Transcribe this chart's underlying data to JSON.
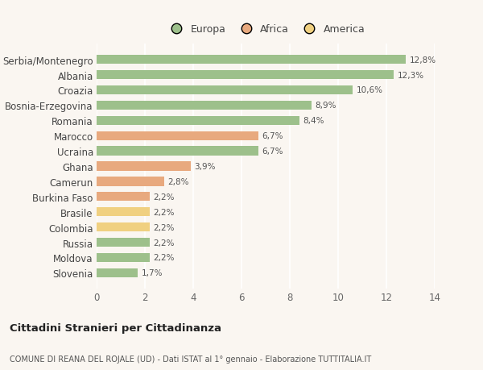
{
  "categories": [
    "Slovenia",
    "Moldova",
    "Russia",
    "Colombia",
    "Brasile",
    "Burkina Faso",
    "Camerun",
    "Ghana",
    "Ucraina",
    "Marocco",
    "Romania",
    "Bosnia-Erzegovina",
    "Croazia",
    "Albania",
    "Serbia/Montenegro"
  ],
  "values": [
    1.7,
    2.2,
    2.2,
    2.2,
    2.2,
    2.2,
    2.8,
    3.9,
    6.7,
    6.7,
    8.4,
    8.9,
    10.6,
    12.3,
    12.8
  ],
  "continents": [
    "Europa",
    "Europa",
    "Europa",
    "America",
    "America",
    "Africa",
    "Africa",
    "Africa",
    "Europa",
    "Africa",
    "Europa",
    "Europa",
    "Europa",
    "Europa",
    "Europa"
  ],
  "labels": [
    "1,7%",
    "2,2%",
    "2,2%",
    "2,2%",
    "2,2%",
    "2,2%",
    "2,8%",
    "3,9%",
    "6,7%",
    "6,7%",
    "8,4%",
    "8,9%",
    "10,6%",
    "12,3%",
    "12,8%"
  ],
  "colors": {
    "Europa": "#9dc08b",
    "Africa": "#e8a97e",
    "America": "#f0d080"
  },
  "legend_labels": [
    "Europa",
    "Africa",
    "America"
  ],
  "legend_colors": [
    "#9dc08b",
    "#e8a97e",
    "#f0d080"
  ],
  "xlim": [
    0,
    14
  ],
  "xticks": [
    0,
    2,
    4,
    6,
    8,
    10,
    12,
    14
  ],
  "title1": "Cittadini Stranieri per Cittadinanza",
  "title2": "COMUNE DI REANA DEL ROJALE (UD) - Dati ISTAT al 1° gennaio - Elaborazione TUTTITALIA.IT",
  "background_color": "#faf6f1",
  "grid_color": "#ffffff"
}
